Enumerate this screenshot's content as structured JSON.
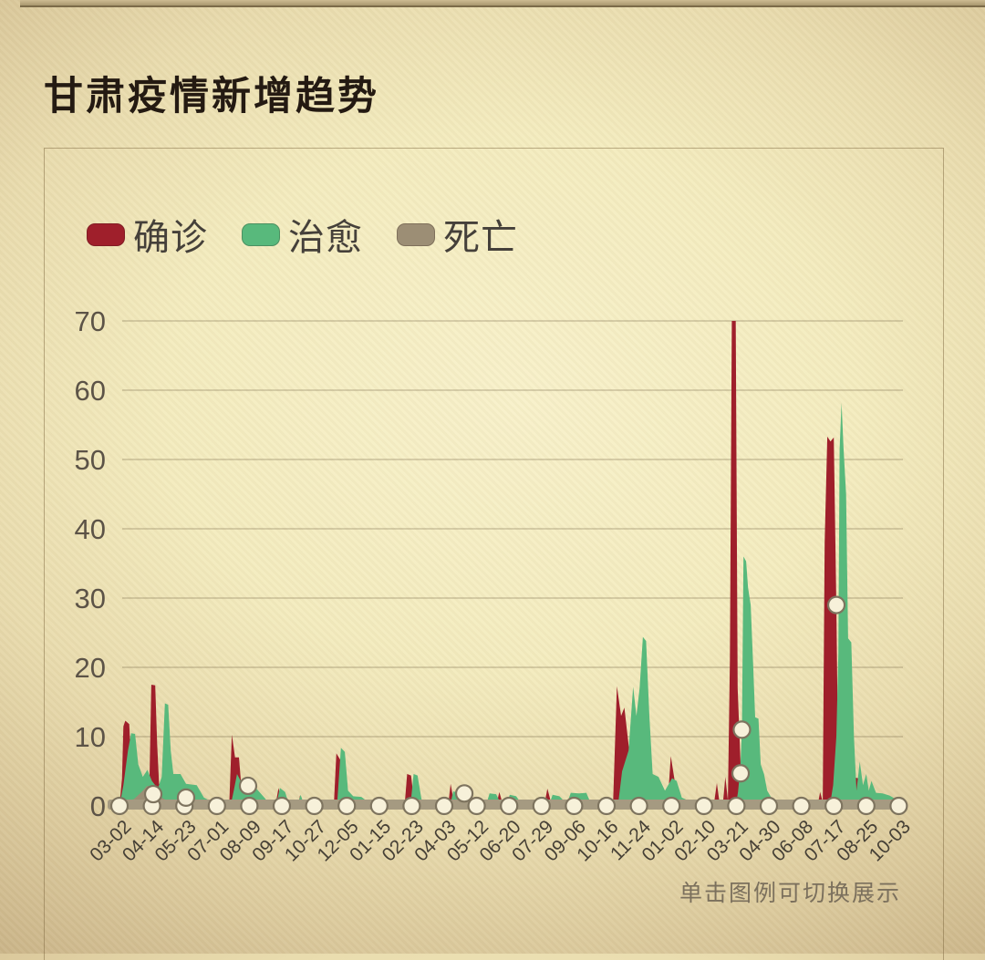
{
  "page": {
    "title": "甘肃疫情新增趋势",
    "hint": "单击图例可切换展示"
  },
  "legend": [
    {
      "label": "确诊"
    },
    {
      "label": "治愈"
    },
    {
      "label": "死亡"
    }
  ],
  "colors": {
    "confirmed": "#9f1f2b",
    "cured": "#58b97c",
    "deaths": "#9c8e75",
    "axis_band": "#a59a81",
    "marker_fill": "#f7f1da",
    "marker_stroke": "#7e745f",
    "gridline": "rgba(130,115,85,0.45)",
    "y_label": "#5c5347",
    "x_label": "#464036"
  },
  "chart_data": {
    "type": "area",
    "title": "甘肃疫情新增趋势",
    "ylabel": "",
    "xlabel": "",
    "ylim": [
      0,
      70
    ],
    "yticks": [
      0,
      10,
      20,
      30,
      40,
      50,
      60,
      70
    ],
    "grid": true,
    "legend_position": "top-left",
    "categories": [
      "03-02",
      "04-14",
      "05-23",
      "07-01",
      "08-09",
      "09-17",
      "10-27",
      "12-05",
      "01-15",
      "02-23",
      "04-03",
      "05-12",
      "06-20",
      "07-29",
      "09-06",
      "10-16",
      "11-24",
      "01-02",
      "02-10",
      "03-21",
      "04-30",
      "06-08",
      "07-17",
      "08-25",
      "10-03"
    ],
    "series": [
      {
        "id": "confirmed",
        "name": "确诊",
        "color": "#9f1f2b",
        "points": [
          [
            0,
            0
          ],
          [
            0.08,
            4
          ],
          [
            0.12,
            11.5
          ],
          [
            0.18,
            12.3
          ],
          [
            0.3,
            11.8
          ],
          [
            0.36,
            6
          ],
          [
            0.45,
            3.5
          ],
          [
            0.52,
            5.2
          ],
          [
            0.62,
            3
          ],
          [
            0.8,
            2
          ],
          [
            0.92,
            3
          ],
          [
            0.98,
            17.5
          ],
          [
            1.1,
            17.4
          ],
          [
            1.16,
            9
          ],
          [
            1.22,
            3.2
          ],
          [
            1.4,
            2.2
          ],
          [
            1.55,
            1.2
          ],
          [
            1.8,
            0.6
          ],
          [
            2.2,
            0.3
          ],
          [
            2.6,
            0
          ],
          [
            3.38,
            0
          ],
          [
            3.46,
            10.3
          ],
          [
            3.56,
            7
          ],
          [
            3.68,
            7
          ],
          [
            3.78,
            1.2
          ],
          [
            4.0,
            0.6
          ],
          [
            4.15,
            0
          ],
          [
            4.8,
            0
          ],
          [
            4.9,
            2.6
          ],
          [
            5.02,
            0
          ],
          [
            5.5,
            0
          ],
          [
            5.56,
            1.5
          ],
          [
            5.66,
            0
          ],
          [
            6.6,
            0
          ],
          [
            6.68,
            7.6
          ],
          [
            6.82,
            6.5
          ],
          [
            6.92,
            1
          ],
          [
            7.1,
            1.3
          ],
          [
            7.35,
            1.2
          ],
          [
            7.55,
            0.5
          ],
          [
            7.75,
            0
          ],
          [
            8.0,
            0
          ],
          [
            8.06,
            1
          ],
          [
            8.14,
            0
          ],
          [
            8.78,
            0
          ],
          [
            8.86,
            4.6
          ],
          [
            8.98,
            4.4
          ],
          [
            9.08,
            0.5
          ],
          [
            9.2,
            0
          ],
          [
            10.12,
            0
          ],
          [
            10.2,
            3.2
          ],
          [
            10.32,
            0
          ],
          [
            11.6,
            0
          ],
          [
            11.7,
            2
          ],
          [
            11.82,
            0
          ],
          [
            13.08,
            0
          ],
          [
            13.18,
            2.5
          ],
          [
            13.32,
            0
          ],
          [
            15.2,
            0
          ],
          [
            15.32,
            17.3
          ],
          [
            15.45,
            13
          ],
          [
            15.55,
            14.2
          ],
          [
            15.7,
            8
          ],
          [
            15.85,
            2.2
          ],
          [
            16.1,
            1
          ],
          [
            16.4,
            0
          ],
          [
            16.88,
            0
          ],
          [
            16.98,
            7.2
          ],
          [
            17.12,
            3
          ],
          [
            17.24,
            0
          ],
          [
            18.3,
            0
          ],
          [
            18.4,
            3.3
          ],
          [
            18.48,
            0.5
          ],
          [
            18.58,
            0
          ],
          [
            18.66,
            4.2
          ],
          [
            18.74,
            0.8
          ],
          [
            18.8,
            21
          ],
          [
            18.86,
            70
          ],
          [
            18.98,
            70
          ],
          [
            19.04,
            17
          ],
          [
            19.14,
            4.7
          ],
          [
            19.3,
            1
          ],
          [
            19.5,
            0
          ],
          [
            21.5,
            0
          ],
          [
            21.58,
            2
          ],
          [
            21.66,
            0.6
          ],
          [
            21.72,
            38
          ],
          [
            21.8,
            53.3
          ],
          [
            21.9,
            52.6
          ],
          [
            22.0,
            53.2
          ],
          [
            22.08,
            29
          ],
          [
            22.12,
            12
          ],
          [
            22.2,
            4
          ],
          [
            22.3,
            30
          ],
          [
            22.38,
            9
          ],
          [
            22.44,
            1.5
          ],
          [
            22.55,
            4.2
          ],
          [
            22.75,
            4
          ],
          [
            22.85,
            1.2
          ],
          [
            23.05,
            2
          ],
          [
            23.18,
            0.6
          ],
          [
            23.5,
            0.5
          ],
          [
            24,
            0.3
          ]
        ]
      },
      {
        "id": "cured",
        "name": "治愈",
        "color": "#58b97c",
        "points": [
          [
            0,
            0
          ],
          [
            0.12,
            3
          ],
          [
            0.26,
            8
          ],
          [
            0.36,
            10.5
          ],
          [
            0.48,
            10.4
          ],
          [
            0.58,
            6
          ],
          [
            0.72,
            4.2
          ],
          [
            0.86,
            5.2
          ],
          [
            1.0,
            3.6
          ],
          [
            1.18,
            2.5
          ],
          [
            1.3,
            4.2
          ],
          [
            1.4,
            14.8
          ],
          [
            1.5,
            14.6
          ],
          [
            1.58,
            8
          ],
          [
            1.66,
            4.6
          ],
          [
            1.88,
            4.6
          ],
          [
            2.05,
            3.2
          ],
          [
            2.38,
            3
          ],
          [
            2.6,
            1.2
          ],
          [
            2.9,
            0.5
          ],
          [
            3.15,
            0
          ],
          [
            3.42,
            0
          ],
          [
            3.52,
            2.2
          ],
          [
            3.62,
            4.6
          ],
          [
            3.78,
            3.2
          ],
          [
            4.0,
            3
          ],
          [
            4.2,
            2.6
          ],
          [
            4.5,
            1
          ],
          [
            4.65,
            0
          ],
          [
            4.82,
            0
          ],
          [
            4.94,
            2.6
          ],
          [
            5.1,
            2
          ],
          [
            5.24,
            0
          ],
          [
            5.48,
            0
          ],
          [
            5.58,
            1.6
          ],
          [
            5.7,
            0
          ],
          [
            6.7,
            0
          ],
          [
            6.82,
            8.4
          ],
          [
            6.94,
            7.8
          ],
          [
            7.04,
            2.2
          ],
          [
            7.2,
            1.4
          ],
          [
            7.45,
            1.3
          ],
          [
            7.65,
            0.6
          ],
          [
            7.85,
            0
          ],
          [
            8.96,
            0
          ],
          [
            9.06,
            4.6
          ],
          [
            9.18,
            4.4
          ],
          [
            9.3,
            1
          ],
          [
            9.5,
            0
          ],
          [
            10.18,
            0
          ],
          [
            10.28,
            2.1
          ],
          [
            10.5,
            1.8
          ],
          [
            10.72,
            0.6
          ],
          [
            10.95,
            0
          ],
          [
            11.28,
            0
          ],
          [
            11.4,
            1.8
          ],
          [
            11.6,
            1.7
          ],
          [
            11.78,
            0
          ],
          [
            11.92,
            0
          ],
          [
            12.02,
            1.6
          ],
          [
            12.22,
            1.4
          ],
          [
            12.42,
            0
          ],
          [
            13.22,
            0
          ],
          [
            13.34,
            1.6
          ],
          [
            13.55,
            1.4
          ],
          [
            13.78,
            0.3
          ],
          [
            13.9,
            1.9
          ],
          [
            14.15,
            1.8
          ],
          [
            14.38,
            1.9
          ],
          [
            14.55,
            0
          ],
          [
            15.35,
            0
          ],
          [
            15.48,
            5
          ],
          [
            15.68,
            8
          ],
          [
            15.82,
            17.2
          ],
          [
            15.92,
            13
          ],
          [
            16.02,
            17
          ],
          [
            16.12,
            24.4
          ],
          [
            16.22,
            23.8
          ],
          [
            16.32,
            13
          ],
          [
            16.42,
            4.6
          ],
          [
            16.6,
            4.2
          ],
          [
            16.8,
            2.2
          ],
          [
            17.02,
            4
          ],
          [
            17.16,
            3.6
          ],
          [
            17.32,
            1.2
          ],
          [
            17.6,
            0.6
          ],
          [
            17.95,
            0
          ],
          [
            18.98,
            0
          ],
          [
            19.05,
            2
          ],
          [
            19.12,
            5.5
          ],
          [
            19.17,
            11
          ],
          [
            19.22,
            36
          ],
          [
            19.3,
            35.3
          ],
          [
            19.36,
            31.5
          ],
          [
            19.44,
            29
          ],
          [
            19.52,
            20
          ],
          [
            19.58,
            12.8
          ],
          [
            19.68,
            12.6
          ],
          [
            19.75,
            6
          ],
          [
            19.85,
            4.6
          ],
          [
            19.95,
            2.2
          ],
          [
            20.15,
            0.6
          ],
          [
            20.35,
            0
          ],
          [
            21.88,
            0
          ],
          [
            21.98,
            3
          ],
          [
            22.08,
            10
          ],
          [
            22.14,
            22
          ],
          [
            22.18,
            51.5
          ],
          [
            22.24,
            58.2
          ],
          [
            22.3,
            51.6
          ],
          [
            22.38,
            45
          ],
          [
            22.44,
            24.2
          ],
          [
            22.54,
            23.6
          ],
          [
            22.62,
            10
          ],
          [
            22.7,
            2.2
          ],
          [
            22.8,
            6.4
          ],
          [
            22.9,
            3
          ],
          [
            23.0,
            4.6
          ],
          [
            23.08,
            2.2
          ],
          [
            23.16,
            3.6
          ],
          [
            23.3,
            1.9
          ],
          [
            23.5,
            1.8
          ],
          [
            23.72,
            1.5
          ],
          [
            23.9,
            1
          ],
          [
            24.0,
            1
          ]
        ]
      },
      {
        "id": "deaths",
        "name": "死亡",
        "color": "#9c8e75",
        "points": [
          [
            0,
            0
          ],
          [
            0.25,
            0.6
          ],
          [
            0.45,
            1
          ],
          [
            0.68,
            2
          ],
          [
            0.85,
            2.9
          ],
          [
            1.05,
            2.6
          ],
          [
            1.25,
            1.3
          ],
          [
            1.5,
            0.7
          ],
          [
            1.9,
            0.3
          ],
          [
            2.3,
            0
          ],
          [
            18.85,
            0
          ],
          [
            19.0,
            0.9
          ],
          [
            19.2,
            0.7
          ],
          [
            19.45,
            0
          ],
          [
            24,
            0
          ]
        ]
      }
    ],
    "tick_markers_at_zero": true,
    "elevated_markers": [
      {
        "t": 1.04,
        "v": 1.7
      },
      {
        "t": 2.05,
        "v": 1.2
      },
      {
        "t": 3.96,
        "v": 2.9
      },
      {
        "t": 10.62,
        "v": 1.8
      },
      {
        "t": 19.13,
        "v": 4.7
      },
      {
        "t": 19.17,
        "v": 11.0
      },
      {
        "t": 22.08,
        "v": 29.0
      }
    ]
  }
}
